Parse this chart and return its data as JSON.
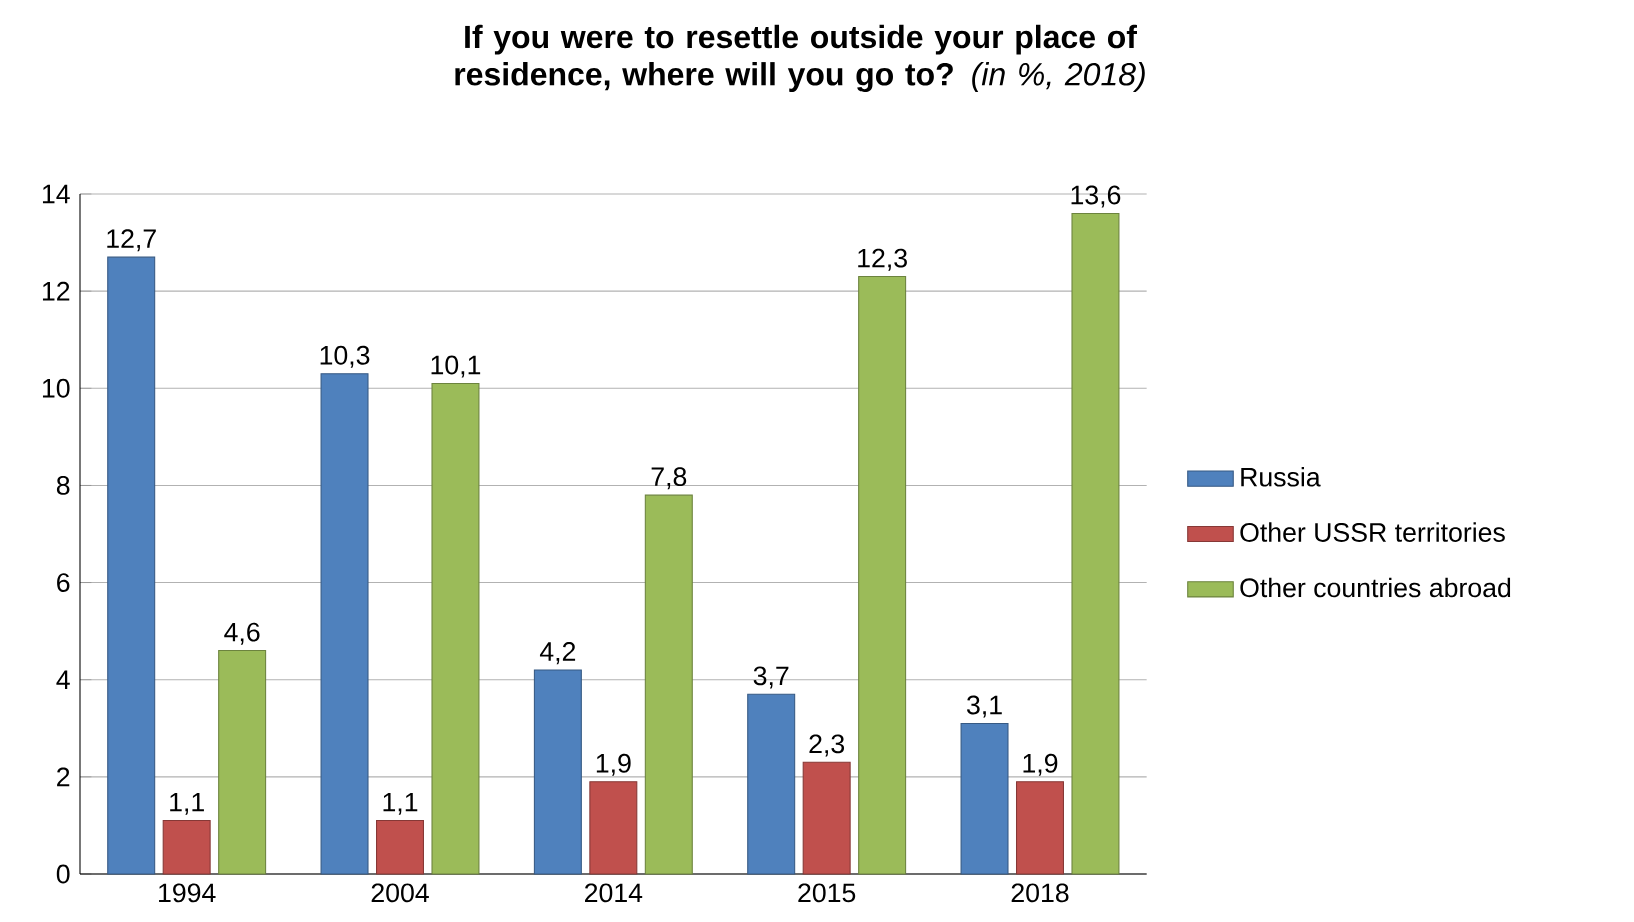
{
  "chart_data": {
    "type": "bar",
    "title": "**If you were to resettle outside your place of residence, where will you go to?** *(in %, 2018)*",
    "categories": [
      "1994",
      "2004",
      "2014",
      "2015",
      "2018"
    ],
    "series": [
      {
        "name": "Russia",
        "color": "#4f81bd",
        "values": [
          12.7,
          10.3,
          4.2,
          3.7,
          3.1
        ],
        "value_labels": [
          "12,7",
          "10,3",
          "4,2",
          "3,7",
          "3,1"
        ]
      },
      {
        "name": "Other USSR territories",
        "color": "#c0504d",
        "values": [
          1.1,
          1.1,
          1.9,
          2.3,
          1.9
        ],
        "value_labels": [
          "1,1",
          "1,1",
          "1,9",
          "2,3",
          "1,9"
        ]
      },
      {
        "name": "Other countries abroad",
        "color": "#9bbb59",
        "values": [
          4.6,
          10.1,
          7.8,
          12.3,
          13.6
        ],
        "value_labels": [
          "4,6",
          "10,1",
          "7,8",
          "12,3",
          "13,6"
        ]
      }
    ],
    "ylim": [
      0,
      14
    ],
    "yticks": [
      0,
      2,
      4,
      6,
      8,
      10,
      12,
      14
    ],
    "grid": "y",
    "legend": "right"
  }
}
